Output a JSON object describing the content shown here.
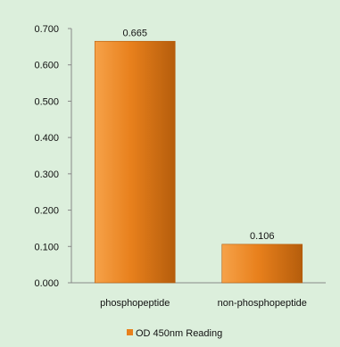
{
  "chart_data": {
    "type": "bar",
    "title": "",
    "xlabel": "",
    "ylabel": "",
    "categories": [
      "phosphopeptide",
      "non-phosphopeptide"
    ],
    "series": [
      {
        "name": "OD 450nm Reading",
        "values": [
          0.665,
          0.106
        ]
      }
    ],
    "data_labels": [
      "0.665",
      "0.106"
    ],
    "ylim": [
      0,
      0.7
    ],
    "y_ticks": [
      "0.000",
      "0.100",
      "0.200",
      "0.300",
      "0.400",
      "0.500",
      "0.600",
      "0.700"
    ],
    "grid": false,
    "legend_position": "bottom",
    "colors": {
      "bar_light": "#f6a249",
      "bar_mid": "#e8801c",
      "bar_dark": "#b55d0c",
      "legend_swatch": "#e8801c",
      "background": "#dcefdc",
      "axis": "#888888"
    }
  }
}
